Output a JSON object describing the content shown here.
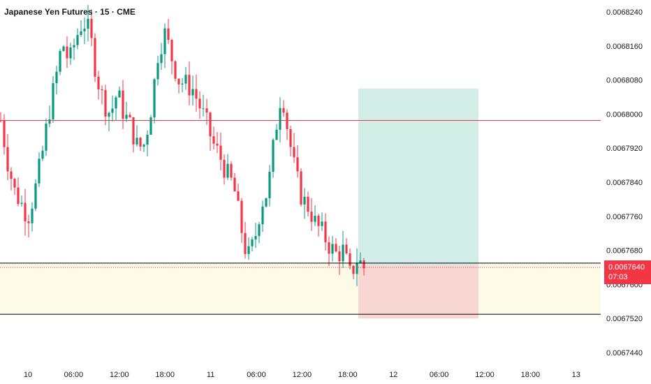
{
  "header": {
    "title": "Japanese Yen Futures · 15 · CME"
  },
  "price_badge": {
    "price": "0.0067640",
    "countdown": "07:03"
  },
  "colors": {
    "up": "#089981",
    "down": "#f23645",
    "resistance": "#e0404a",
    "target_zone": "#d3ede7",
    "stop_zone": "#f8d6d3",
    "demand_zone": "#fdfbe7"
  },
  "chart_data": {
    "type": "candlestick",
    "title": "Japanese Yen Futures · 15 · CME",
    "y_axis": {
      "ticks": [
        "0.0068240",
        "0.0068160",
        "0.0068080",
        "0.0068000",
        "0.0067920",
        "0.0067840",
        "0.0067760",
        "0.0067680",
        "0.0067600",
        "0.0067520",
        "0.0067440"
      ],
      "range": [
        0.00674,
        0.00683
      ]
    },
    "x_axis": {
      "ticks": [
        "10",
        "06:00",
        "12:00",
        "18:00",
        "11",
        "06:00",
        "12:00",
        "18:00",
        "12",
        "06:00",
        "12:00",
        "18:00",
        "13"
      ]
    },
    "close_path": [
      0.0067985,
      0.006789,
      0.006782,
      0.006779,
      0.006776,
      0.006782,
      0.00679,
      0.0068,
      0.006808,
      0.006817,
      0.006812,
      0.006818,
      0.006822,
      0.006819,
      0.006809,
      0.006803,
      0.0068,
      0.006805,
      0.0068,
      0.006797,
      0.006792,
      0.006793,
      0.006802,
      0.006815,
      0.006819,
      0.006813,
      0.006808,
      0.006807,
      0.006806,
      0.006802,
      0.006798,
      0.006793,
      0.00679,
      0.006786,
      0.006783,
      0.006774,
      0.006766,
      0.00677,
      0.006779,
      0.006782,
      0.006795,
      0.006806,
      0.006795,
      0.006786,
      0.00678,
      0.006778,
      0.006774,
      0.006772,
      0.006769,
      0.006767,
      0.006768,
      0.006762,
      0.006766,
      0.006764
    ],
    "resistance_level": 0.0067985,
    "current_price": 0.006764,
    "demand_zone": [
      0.006753,
      0.006765
    ],
    "trade_box": {
      "entry": 0.0067645,
      "target": 0.006806,
      "stop": 0.006752
    }
  }
}
